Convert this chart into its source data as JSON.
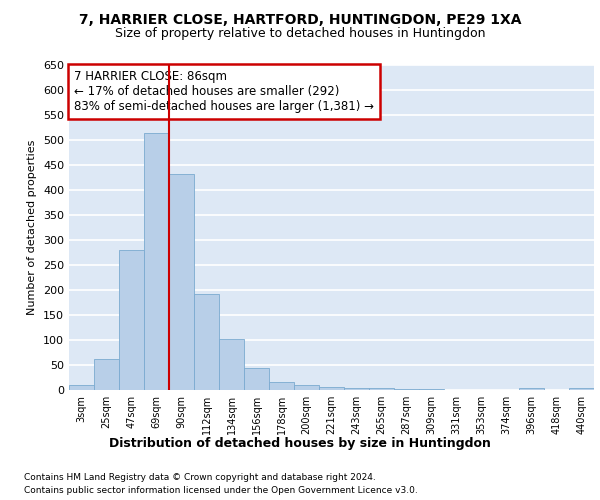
{
  "title1": "7, HARRIER CLOSE, HARTFORD, HUNTINGDON, PE29 1XA",
  "title2": "Size of property relative to detached houses in Huntingdon",
  "xlabel": "Distribution of detached houses by size in Huntingdon",
  "ylabel": "Number of detached properties",
  "footnote1": "Contains HM Land Registry data © Crown copyright and database right 2024.",
  "footnote2": "Contains public sector information licensed under the Open Government Licence v3.0.",
  "bar_labels": [
    "3sqm",
    "25sqm",
    "47sqm",
    "69sqm",
    "90sqm",
    "112sqm",
    "134sqm",
    "156sqm",
    "178sqm",
    "200sqm",
    "221sqm",
    "243sqm",
    "265sqm",
    "287sqm",
    "309sqm",
    "331sqm",
    "353sqm",
    "374sqm",
    "396sqm",
    "418sqm",
    "440sqm"
  ],
  "bar_values": [
    10,
    63,
    280,
    515,
    433,
    193,
    102,
    45,
    17,
    10,
    7,
    5,
    4,
    3,
    3,
    0,
    0,
    0,
    5,
    0,
    5
  ],
  "bar_color": "#b8cfe8",
  "bar_edge_color": "#7aaad0",
  "annotation_box_text": "7 HARRIER CLOSE: 86sqm\n← 17% of detached houses are smaller (292)\n83% of semi-detached houses are larger (1,381) →",
  "annotation_box_color": "#ffffff",
  "annotation_box_edge_color": "#cc0000",
  "vline_x_index": 3.5,
  "vline_color": "#cc0000",
  "background_color": "#dde8f5",
  "grid_color": "#ffffff",
  "fig_background": "#ffffff",
  "ylim": [
    0,
    650
  ],
  "yticks": [
    0,
    50,
    100,
    150,
    200,
    250,
    300,
    350,
    400,
    450,
    500,
    550,
    600,
    650
  ]
}
